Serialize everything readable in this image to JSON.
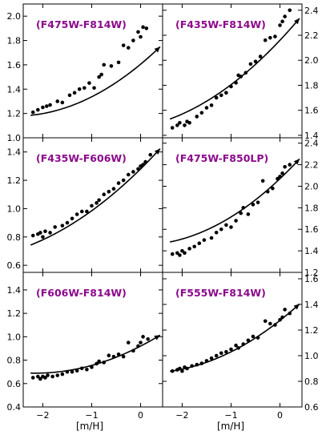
{
  "colors": {
    "title": "#8b0a8b",
    "ink": "#000000"
  },
  "chart_data": [
    {
      "type": "scatter",
      "title": "(F475W-F814W)",
      "xlabel": "",
      "ylabel": "",
      "xlim": [
        -2.4,
        0.45
      ],
      "ylim": [
        1.0,
        2.1
      ],
      "xticks": [
        -2,
        -1,
        0
      ],
      "yticks": [
        1.0,
        1.2,
        1.4,
        1.6,
        1.8,
        2.0
      ],
      "ytick_labels": [
        "1.0",
        "1.2",
        "1.4",
        "1.6",
        "1.8",
        "2.0"
      ],
      "y_axis_side": "left",
      "fit": [
        1.605,
        0.333,
        0.065
      ],
      "x": [
        -2.2,
        -2.1,
        -2.0,
        -1.92,
        -1.85,
        -1.7,
        -1.6,
        -1.45,
        -1.35,
        -1.25,
        -1.15,
        -1.05,
        -0.95,
        -0.85,
        -0.8,
        -0.75,
        -0.6,
        -0.45,
        -0.35,
        -0.25,
        -0.15,
        -0.05,
        0.0,
        0.05,
        0.12
      ],
      "y": [
        1.21,
        1.23,
        1.25,
        1.26,
        1.27,
        1.3,
        1.29,
        1.35,
        1.37,
        1.4,
        1.41,
        1.45,
        1.41,
        1.5,
        1.52,
        1.6,
        1.59,
        1.62,
        1.76,
        1.74,
        1.8,
        1.87,
        1.83,
        1.91,
        1.9
      ]
    },
    {
      "type": "scatter",
      "title": "(F435W-F814W)",
      "xlabel": "",
      "ylabel": "",
      "xlim": [
        -2.4,
        0.45
      ],
      "ylim": [
        1.38,
        2.45
      ],
      "xticks": [
        -2,
        -1,
        0
      ],
      "yticks": [
        1.4,
        1.6,
        1.8,
        2.0,
        2.2,
        2.4
      ],
      "ytick_labels": [
        "1.4",
        "1.6",
        "1.8",
        "2.0",
        "2.2",
        "2.4"
      ],
      "y_axis_side": "right",
      "fit": [
        2.16,
        0.415,
        0.06
      ],
      "x": [
        -2.2,
        -2.1,
        -2.05,
        -1.95,
        -1.9,
        -1.85,
        -1.7,
        -1.6,
        -1.5,
        -1.4,
        -1.3,
        -1.2,
        -1.1,
        -1.0,
        -0.9,
        -0.85,
        -0.8,
        -0.7,
        -0.6,
        -0.5,
        -0.4,
        -0.3,
        -0.2,
        -0.1,
        0.0,
        0.05,
        0.1,
        0.2
      ],
      "y": [
        1.46,
        1.48,
        1.5,
        1.48,
        1.51,
        1.5,
        1.55,
        1.58,
        1.62,
        1.64,
        1.7,
        1.72,
        1.74,
        1.79,
        1.82,
        1.88,
        1.87,
        1.9,
        1.97,
        1.99,
        2.03,
        2.16,
        2.18,
        2.19,
        2.28,
        2.31,
        2.35,
        2.4
      ]
    },
    {
      "type": "scatter",
      "title": "(F435W-F606W)",
      "xlabel": "",
      "ylabel": "",
      "xlim": [
        -2.4,
        0.45
      ],
      "ylim": [
        0.55,
        1.5
      ],
      "xticks": [
        -2,
        -1,
        0
      ],
      "yticks": [
        0.6,
        0.8,
        1.0,
        1.2,
        1.4
      ],
      "ytick_labels": [
        "0.6",
        "0.8",
        "1.0",
        "1.2",
        "1.4"
      ],
      "y_axis_side": "left",
      "fit": [
        1.28,
        0.34,
        0.045
      ],
      "x": [
        -2.2,
        -2.1,
        -2.05,
        -2.0,
        -1.95,
        -1.85,
        -1.75,
        -1.6,
        -1.5,
        -1.4,
        -1.3,
        -1.2,
        -1.1,
        -1.0,
        -0.9,
        -0.85,
        -0.75,
        -0.65,
        -0.55,
        -0.45,
        -0.35,
        -0.25,
        -0.15,
        -0.05,
        0.0,
        0.05,
        0.1,
        0.2
      ],
      "y": [
        0.81,
        0.82,
        0.83,
        0.8,
        0.84,
        0.83,
        0.87,
        0.88,
        0.9,
        0.93,
        0.96,
        0.98,
        0.98,
        1.02,
        1.04,
        1.06,
        1.1,
        1.12,
        1.14,
        1.18,
        1.2,
        1.24,
        1.26,
        1.28,
        1.3,
        1.31,
        1.33,
        1.38
      ]
    },
    {
      "type": "scatter",
      "title": "(F475W-F850LP)",
      "xlabel": "",
      "ylabel": "",
      "xlim": [
        -2.4,
        0.45
      ],
      "ylim": [
        1.2,
        2.45
      ],
      "xticks": [
        -2,
        -1,
        0
      ],
      "yticks": [
        1.2,
        1.4,
        1.6,
        1.8,
        2.0,
        2.2,
        2.4
      ],
      "ytick_labels": [
        "1.2",
        "1.4",
        "1.6",
        "1.8",
        "2.0",
        "2.2",
        "2.4"
      ],
      "y_axis_side": "right",
      "fit": [
        2.07,
        0.43,
        0.075
      ],
      "x": [
        -2.2,
        -2.1,
        -2.05,
        -2.0,
        -1.95,
        -1.85,
        -1.75,
        -1.65,
        -1.55,
        -1.4,
        -1.3,
        -1.2,
        -1.1,
        -1.0,
        -0.9,
        -0.8,
        -0.75,
        -0.65,
        -0.55,
        -0.45,
        -0.35,
        -0.25,
        -0.15,
        -0.05,
        0.0,
        0.05,
        0.1,
        0.2
      ],
      "y": [
        1.37,
        1.38,
        1.36,
        1.4,
        1.38,
        1.42,
        1.44,
        1.47,
        1.5,
        1.52,
        1.57,
        1.6,
        1.64,
        1.62,
        1.68,
        1.75,
        1.8,
        1.74,
        1.83,
        1.85,
        2.05,
        1.95,
        1.98,
        2.07,
        2.09,
        2.12,
        2.18,
        2.2
      ]
    },
    {
      "type": "scatter",
      "title": "(F606W-F814W)",
      "xlabel": "[m/H]",
      "ylabel": "",
      "xlim": [
        -2.4,
        0.45
      ],
      "ylim": [
        0.4,
        1.55
      ],
      "xticks": [
        -2,
        -1,
        0
      ],
      "yticks": [
        0.4,
        0.6,
        0.8,
        1.0,
        1.2,
        1.4
      ],
      "ytick_labels": [
        "0.4",
        "0.6",
        "0.8",
        "1.0",
        "1.2",
        "1.4"
      ],
      "y_axis_side": "left",
      "fit": [
        0.92,
        0.215,
        0.05
      ],
      "x": [
        -2.2,
        -2.1,
        -2.05,
        -2.0,
        -1.95,
        -1.9,
        -1.8,
        -1.7,
        -1.6,
        -1.5,
        -1.4,
        -1.3,
        -1.2,
        -1.1,
        -1.0,
        -0.9,
        -0.85,
        -0.75,
        -0.65,
        -0.55,
        -0.45,
        -0.35,
        -0.25,
        -0.15,
        -0.05,
        0.0,
        0.05,
        0.15
      ],
      "y": [
        0.65,
        0.66,
        0.64,
        0.66,
        0.65,
        0.67,
        0.66,
        0.67,
        0.68,
        0.7,
        0.7,
        0.71,
        0.73,
        0.72,
        0.74,
        0.77,
        0.79,
        0.78,
        0.84,
        0.83,
        0.85,
        0.83,
        0.95,
        0.88,
        0.92,
        0.95,
        1.0,
        0.98
      ]
    },
    {
      "type": "scatter",
      "title": "(F555W-F814W)",
      "xlabel": "[m/H]",
      "ylabel": "",
      "xlim": [
        -2.4,
        0.45
      ],
      "ylim": [
        0.6,
        1.65
      ],
      "xticks": [
        -2,
        -1,
        0
      ],
      "yticks": [
        0.6,
        0.8,
        1.0,
        1.2,
        1.4,
        1.6
      ],
      "ytick_labels": [
        "0.6",
        "0.8",
        "1.0",
        "1.2",
        "1.4",
        "1.6"
      ],
      "y_axis_side": "right",
      "fit": [
        1.275,
        0.3,
        0.055
      ],
      "x": [
        -2.2,
        -2.1,
        -2.05,
        -2.0,
        -1.95,
        -1.9,
        -1.8,
        -1.7,
        -1.6,
        -1.5,
        -1.4,
        -1.3,
        -1.2,
        -1.1,
        -1.0,
        -0.9,
        -0.85,
        -0.75,
        -0.65,
        -0.55,
        -0.45,
        -0.3,
        -0.2,
        -0.1,
        0.0,
        0.05,
        0.1,
        0.2
      ],
      "y": [
        0.88,
        0.89,
        0.9,
        0.88,
        0.91,
        0.9,
        0.92,
        0.93,
        0.94,
        0.96,
        0.98,
        1.0,
        1.02,
        1.03,
        1.05,
        1.08,
        1.06,
        1.09,
        1.12,
        1.15,
        1.14,
        1.27,
        1.25,
        1.24,
        1.28,
        1.3,
        1.36,
        1.33
      ]
    }
  ]
}
